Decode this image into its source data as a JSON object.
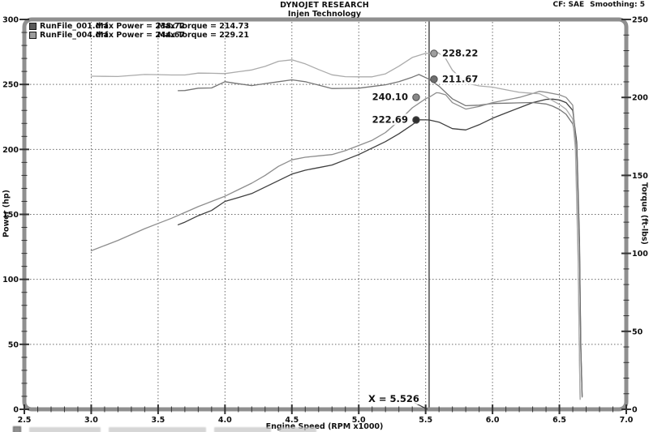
{
  "header": {
    "brand": "DYNOJET RESEARCH",
    "subtitle": "Injen Technology",
    "correction": "CF: SAE",
    "smoothing": "Smoothing: 5"
  },
  "legend": [
    {
      "file": "RunFile_001.drf",
      "max_power": "Max Power = 238.72",
      "max_torque": "Max Torque = 214.73",
      "swatch_color": "#5a5a5a"
    },
    {
      "file": "RunFile_004.drf",
      "max_power": "Max Power = 244.67",
      "max_torque": "Max Torque = 229.21",
      "swatch_color": "#9c9c9c"
    }
  ],
  "cursor": {
    "x_rpm": 5.526,
    "label": "X = 5.526"
  },
  "callouts": [
    {
      "value": "228.22",
      "series": "RunFile_004.drf torque at cursor",
      "axis": "torque",
      "y": 228.22,
      "side": "right",
      "color": "#9f9f9f"
    },
    {
      "value": "211.67",
      "series": "RunFile_001.drf torque at cursor",
      "axis": "torque",
      "y": 211.67,
      "side": "right",
      "color": "#6f6f6f"
    },
    {
      "value": "240.10",
      "series": "RunFile_004.drf power at cursor",
      "axis": "power",
      "y": 240.1,
      "side": "left",
      "color": "#888888"
    },
    {
      "value": "222.69",
      "series": "RunFile_001.drf power at cursor",
      "axis": "power",
      "y": 222.69,
      "side": "left",
      "color": "#2f2f2f"
    }
  ],
  "chart_data": {
    "type": "line",
    "title": "DYNOJET RESEARCH — Injen Technology",
    "xlabel": "Engine Speed (RPM x1000)",
    "ylabel_left": "Power (hp)",
    "ylabel_right": "Torque (ft-lbs)",
    "xlim": [
      2.5,
      7.0
    ],
    "ylim_left": [
      0,
      300
    ],
    "ylim_right": [
      0,
      250
    ],
    "x_major_ticks": [
      2.5,
      3.0,
      3.5,
      4.0,
      4.5,
      5.0,
      5.5,
      6.0,
      6.5,
      7.0
    ],
    "x_minor_step": 0.1,
    "y_left_major_ticks": [
      0,
      50,
      100,
      150,
      200,
      250,
      300
    ],
    "y_right_major_ticks": [
      0,
      50,
      100,
      150,
      200,
      250
    ],
    "y_minor_step": 10,
    "grid_vertical_rpm": [
      3.0,
      3.5,
      4.0,
      4.5,
      5.0,
      5.5,
      6.0,
      6.5
    ],
    "grid_horizontal_hp": [
      50,
      100,
      150,
      200,
      250
    ],
    "legend_position": "top-left",
    "series": [
      {
        "name": "RunFile_001.drf Power",
        "axis": "power",
        "color": "#3f3f3f",
        "max": 238.72,
        "points": [
          [
            3.65,
            142
          ],
          [
            3.7,
            144
          ],
          [
            3.8,
            149
          ],
          [
            3.9,
            153
          ],
          [
            4.0,
            160
          ],
          [
            4.1,
            163
          ],
          [
            4.2,
            166
          ],
          [
            4.3,
            171
          ],
          [
            4.4,
            176
          ],
          [
            4.5,
            181
          ],
          [
            4.6,
            184
          ],
          [
            4.7,
            186
          ],
          [
            4.8,
            188
          ],
          [
            4.9,
            192
          ],
          [
            5.0,
            196
          ],
          [
            5.1,
            201
          ],
          [
            5.2,
            206
          ],
          [
            5.3,
            212
          ],
          [
            5.4,
            219
          ],
          [
            5.45,
            222.8
          ],
          [
            5.5,
            222.7
          ],
          [
            5.526,
            222.69
          ],
          [
            5.6,
            221
          ],
          [
            5.7,
            216
          ],
          [
            5.8,
            215
          ],
          [
            5.9,
            219
          ],
          [
            6.0,
            224
          ],
          [
            6.1,
            228
          ],
          [
            6.2,
            232
          ],
          [
            6.3,
            236
          ],
          [
            6.4,
            238.5
          ],
          [
            6.45,
            238.72
          ],
          [
            6.5,
            238
          ],
          [
            6.55,
            236
          ],
          [
            6.6,
            230
          ],
          [
            6.63,
            205
          ],
          [
            6.65,
            130
          ],
          [
            6.66,
            50
          ],
          [
            6.67,
            10
          ]
        ]
      },
      {
        "name": "RunFile_001.drf Torque",
        "axis": "torque",
        "color": "#757575",
        "max": 214.73,
        "points": [
          [
            3.65,
            204.3
          ],
          [
            3.7,
            204.4
          ],
          [
            3.8,
            205.9
          ],
          [
            3.9,
            206.1
          ],
          [
            4.0,
            210.1
          ],
          [
            4.1,
            208.8
          ],
          [
            4.2,
            207.6
          ],
          [
            4.3,
            208.9
          ],
          [
            4.4,
            210.1
          ],
          [
            4.5,
            211.3
          ],
          [
            4.6,
            210.1
          ],
          [
            4.7,
            207.9
          ],
          [
            4.8,
            205.7
          ],
          [
            4.9,
            205.8
          ],
          [
            5.0,
            205.9
          ],
          [
            5.1,
            207.0
          ],
          [
            5.2,
            208.1
          ],
          [
            5.3,
            210.1
          ],
          [
            5.4,
            213.0
          ],
          [
            5.45,
            214.73
          ],
          [
            5.5,
            212.7
          ],
          [
            5.526,
            211.67
          ],
          [
            5.6,
            207.2
          ],
          [
            5.7,
            199.1
          ],
          [
            5.8,
            194.7
          ],
          [
            5.9,
            195.0
          ],
          [
            6.0,
            196.1
          ],
          [
            6.1,
            196.3
          ],
          [
            6.2,
            196.5
          ],
          [
            6.3,
            196.7
          ],
          [
            6.4,
            195.8
          ],
          [
            6.45,
            194.4
          ],
          [
            6.5,
            192.3
          ],
          [
            6.55,
            189.2
          ],
          [
            6.6,
            183.0
          ],
          [
            6.63,
            170.0
          ],
          [
            6.65,
            102.7
          ],
          [
            6.66,
            39.4
          ],
          [
            6.67,
            7.9
          ]
        ]
      },
      {
        "name": "RunFile_004.drf Power",
        "axis": "power",
        "color": "#8d8d8d",
        "max": 244.67,
        "points": [
          [
            3.0,
            122
          ],
          [
            3.1,
            126
          ],
          [
            3.2,
            130
          ],
          [
            3.3,
            134.5
          ],
          [
            3.4,
            139
          ],
          [
            3.5,
            143
          ],
          [
            3.6,
            147
          ],
          [
            3.7,
            151.5
          ],
          [
            3.8,
            156
          ],
          [
            3.9,
            160
          ],
          [
            4.0,
            164
          ],
          [
            4.1,
            169
          ],
          [
            4.2,
            174
          ],
          [
            4.3,
            180
          ],
          [
            4.4,
            187
          ],
          [
            4.5,
            192
          ],
          [
            4.6,
            194
          ],
          [
            4.7,
            195
          ],
          [
            4.8,
            196
          ],
          [
            4.9,
            199
          ],
          [
            5.0,
            203
          ],
          [
            5.1,
            207
          ],
          [
            5.2,
            213
          ],
          [
            5.3,
            222
          ],
          [
            5.4,
            232
          ],
          [
            5.5,
            239
          ],
          [
            5.526,
            240.1
          ],
          [
            5.58,
            243.6
          ],
          [
            5.6,
            243.5
          ],
          [
            5.65,
            242
          ],
          [
            5.7,
            236
          ],
          [
            5.8,
            231
          ],
          [
            5.9,
            233
          ],
          [
            6.0,
            236
          ],
          [
            6.1,
            238
          ],
          [
            6.2,
            240
          ],
          [
            6.3,
            243
          ],
          [
            6.35,
            244.67
          ],
          [
            6.4,
            244
          ],
          [
            6.5,
            242
          ],
          [
            6.55,
            240
          ],
          [
            6.6,
            234
          ],
          [
            6.62,
            210
          ],
          [
            6.64,
            120
          ],
          [
            6.65,
            40
          ],
          [
            6.655,
            8
          ]
        ]
      },
      {
        "name": "RunFile_004.drf Torque",
        "axis": "torque",
        "color": "#ababab",
        "max": 229.21,
        "points": [
          [
            3.0,
            213.6
          ],
          [
            3.1,
            213.5
          ],
          [
            3.2,
            213.4
          ],
          [
            3.3,
            214.1
          ],
          [
            3.4,
            214.7
          ],
          [
            3.5,
            214.6
          ],
          [
            3.6,
            214.4
          ],
          [
            3.7,
            214.4
          ],
          [
            3.8,
            215.6
          ],
          [
            3.9,
            215.5
          ],
          [
            4.0,
            215.3
          ],
          [
            4.1,
            216.5
          ],
          [
            4.2,
            217.6
          ],
          [
            4.3,
            219.9
          ],
          [
            4.4,
            223.2
          ],
          [
            4.5,
            224.1
          ],
          [
            4.6,
            221.5
          ],
          [
            4.7,
            217.9
          ],
          [
            4.8,
            214.5
          ],
          [
            4.9,
            213.3
          ],
          [
            5.0,
            213.2
          ],
          [
            5.1,
            213.2
          ],
          [
            5.2,
            215.1
          ],
          [
            5.3,
            220.0
          ],
          [
            5.4,
            225.6
          ],
          [
            5.5,
            228.3
          ],
          [
            5.526,
            228.22
          ],
          [
            5.58,
            229.21
          ],
          [
            5.6,
            228.3
          ],
          [
            5.65,
            224.9
          ],
          [
            5.7,
            217.5
          ],
          [
            5.8,
            209.2
          ],
          [
            5.9,
            207.4
          ],
          [
            6.0,
            206.6
          ],
          [
            6.1,
            204.9
          ],
          [
            6.2,
            203.3
          ],
          [
            6.3,
            202.6
          ],
          [
            6.35,
            202.4
          ],
          [
            6.4,
            200.3
          ],
          [
            6.5,
            195.5
          ],
          [
            6.55,
            192.4
          ],
          [
            6.6,
            186.2
          ],
          [
            6.62,
            166.5
          ],
          [
            6.64,
            94.9
          ],
          [
            6.65,
            31.6
          ],
          [
            6.655,
            6.3
          ]
        ]
      }
    ],
    "cursor_line_rpm": 5.526,
    "colors": {
      "frame": "#8f8f8f",
      "grid": "#6b6b6b",
      "cursor": "#3c3c3c",
      "text": "#111111"
    }
  }
}
